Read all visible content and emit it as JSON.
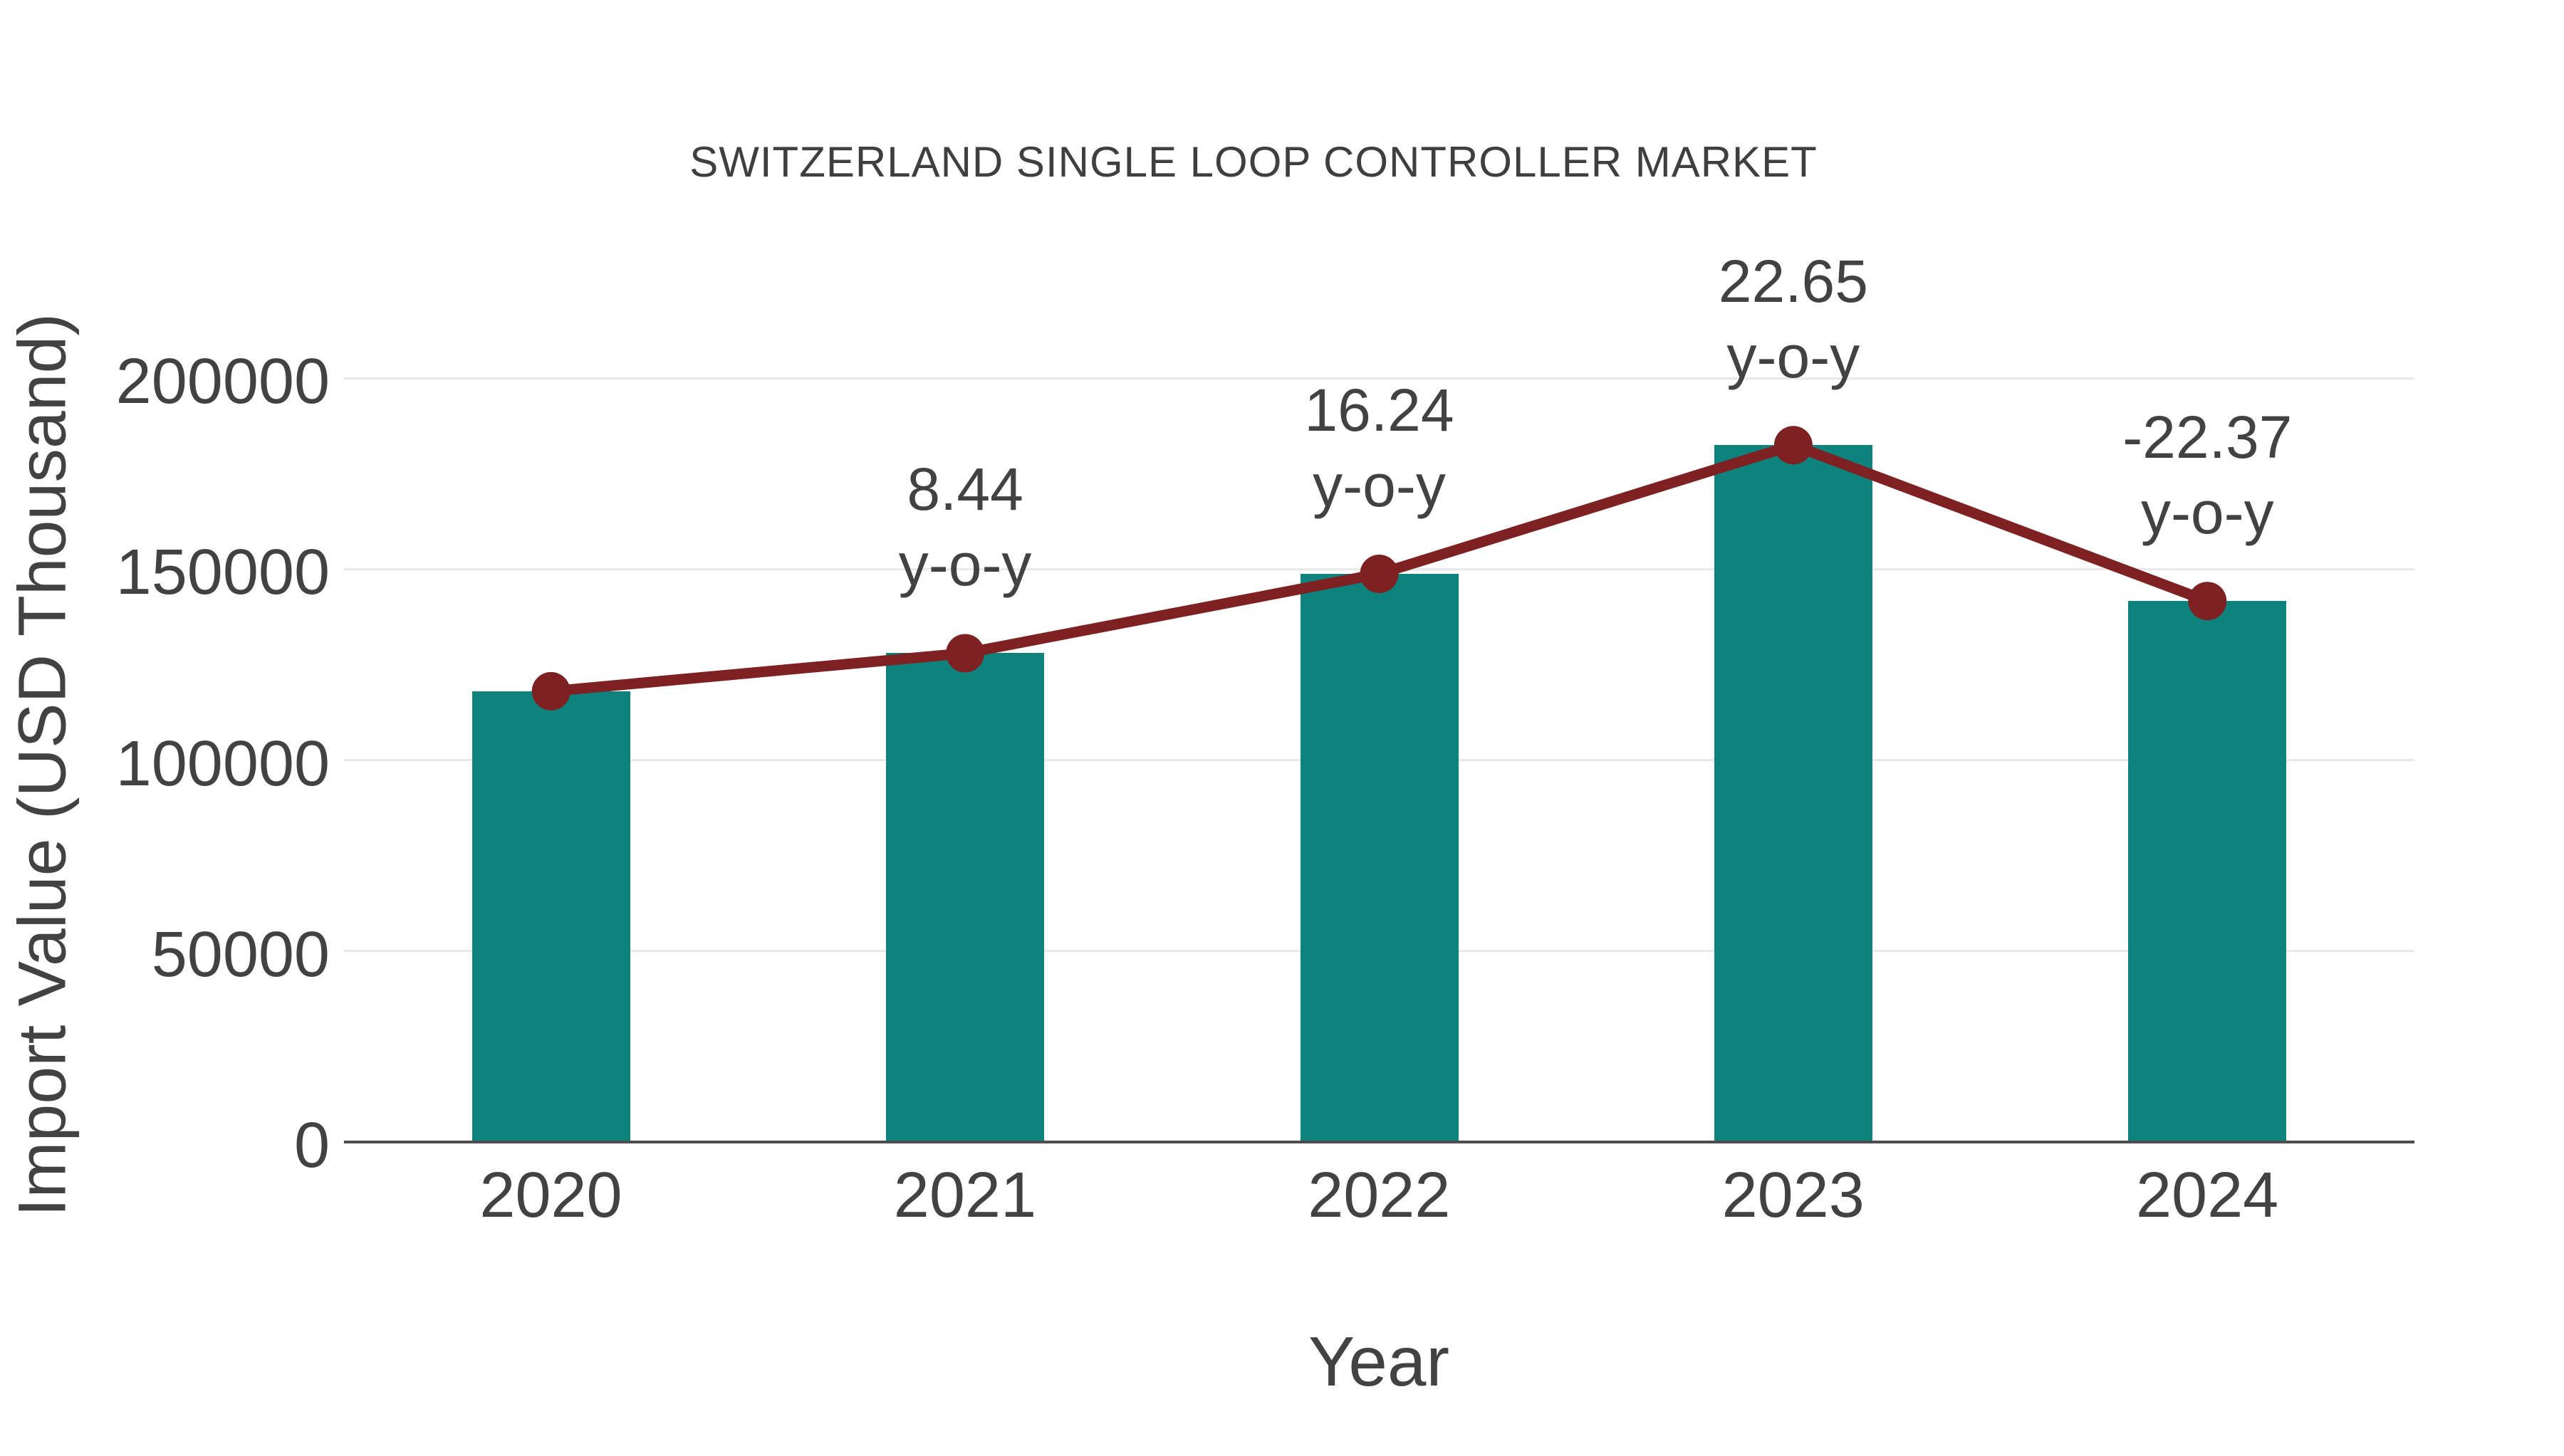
{
  "chart_data": {
    "type": "bar",
    "title": "SWITZERLAND SINGLE LOOP CONTROLLER MARKET",
    "xlabel": "Year",
    "ylabel": "Import Value (USD Thousand)",
    "categories": [
      "2020",
      "2021",
      "2022",
      "2023",
      "2024"
    ],
    "series": [
      {
        "name": "Import Value bars",
        "type": "bar",
        "color": "#0e827d",
        "values": [
          118000,
          127960,
          148740,
          182430,
          141620
        ]
      },
      {
        "name": "Import Value trend line",
        "type": "line",
        "color": "#7e2123",
        "values": [
          118000,
          127960,
          148740,
          182430,
          141620
        ]
      }
    ],
    "yoy_annotations": [
      {
        "category": "2021",
        "value": "8.44",
        "suffix": "y-o-y"
      },
      {
        "category": "2022",
        "value": "16.24",
        "suffix": "y-o-y"
      },
      {
        "category": "2023",
        "value": "22.65",
        "suffix": "y-o-y"
      },
      {
        "category": "2024",
        "value": "-22.37",
        "suffix": "y-o-y"
      }
    ],
    "yticks": [
      0,
      50000,
      100000,
      150000,
      200000
    ],
    "ylim": [
      0,
      214000
    ],
    "grid": true,
    "legend": "none"
  },
  "colors": {
    "bar": "#0e827d",
    "line": "#7e2123",
    "text": "#424242",
    "title": "#3f3f3f",
    "gridline": "#e9e9e9",
    "axis": "#4d4d4d",
    "background": "#ffffff"
  }
}
